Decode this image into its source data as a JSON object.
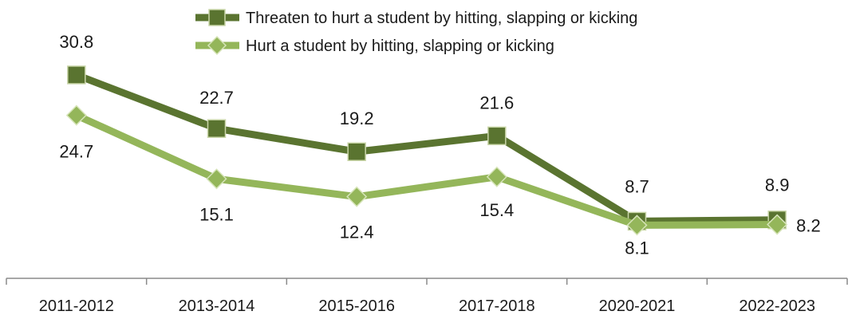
{
  "chart_data": {
    "type": "line",
    "categories": [
      "2011-2012",
      "2013-2014",
      "2015-2016",
      "2017-2018",
      "2020-2021",
      "2022-2023"
    ],
    "series": [
      {
        "name": "Threaten to hurt a student by hitting, slapping or kicking",
        "values": [
          30.8,
          22.7,
          19.2,
          21.6,
          8.7,
          8.9
        ],
        "labels": [
          "30.8",
          "22.7",
          "19.2",
          "21.6",
          "8.7",
          "8.9"
        ],
        "color": "#5a7430",
        "marker": "square"
      },
      {
        "name": "Hurt a student by hitting, slapping or kicking",
        "values": [
          24.7,
          15.1,
          12.4,
          15.4,
          8.1,
          8.2
        ],
        "labels": [
          "24.7",
          "15.1",
          "12.4",
          "15.4",
          "8.1",
          "8.2"
        ],
        "color": "#94b65a",
        "marker": "diamond"
      }
    ],
    "grid": false,
    "legend_position": "top"
  }
}
